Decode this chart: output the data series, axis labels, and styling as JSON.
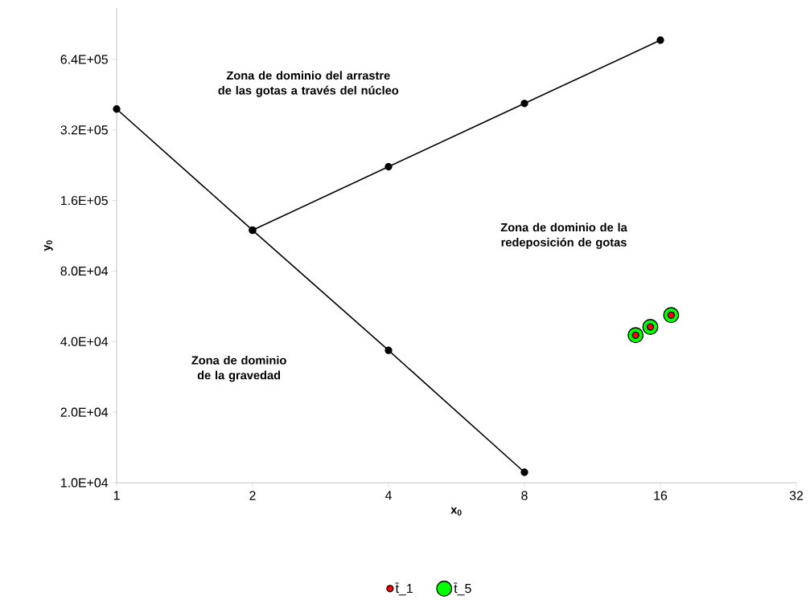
{
  "chart_data": {
    "type": "line",
    "xlabel": "x$_{0}$",
    "ylabel": "y$_{0}$",
    "log": "xy",
    "grid": false,
    "legend": "bottom",
    "marker": "circle",
    "xlim": [
      1,
      32
    ],
    "ylim": [
      10000,
      1060000
    ],
    "xticks": [
      1,
      2,
      4,
      8,
      16,
      32
    ],
    "yticks": [
      {
        "value": 10000,
        "label": "1.0E+04"
      },
      {
        "value": 20000,
        "label": "2.0E+04"
      },
      {
        "value": 40000,
        "label": "4.0E+04"
      },
      {
        "value": 80000,
        "label": "8.0E+04"
      },
      {
        "value": 160000,
        "label": "1.6E+05"
      },
      {
        "value": 320000,
        "label": "3.2E+05"
      },
      {
        "value": 640000,
        "label": "6.4E+05"
      }
    ],
    "series": [
      {
        "color": "#000000",
        "x": [
          1,
          2,
          4,
          8
        ],
        "values": [
          393000,
          119500,
          36700,
          11080
        ]
      },
      {
        "color": "#000000",
        "x": [
          2,
          4,
          8,
          16
        ],
        "values": [
          119500,
          223000,
          415000,
          773000
        ]
      },
      {
        "type": "scatter",
        "name": "t̄_1",
        "color": "#ff0000",
        "x": [
          14.1,
          15.2,
          16.9
        ],
        "values": [
          42600,
          46200,
          51900
        ]
      },
      {
        "type": "scatter",
        "name": "t̄_5",
        "color": "#00ff00",
        "x": [
          14.1,
          15.2,
          16.9
        ],
        "values": [
          42600,
          46200,
          51900
        ]
      }
    ],
    "annotations": [
      "Zona de dominio del arrastre de las gotas a través del núcleo",
      "Zona de dominio de la redeposición de gotas",
      "Zona de dominio de la gravedad"
    ]
  }
}
